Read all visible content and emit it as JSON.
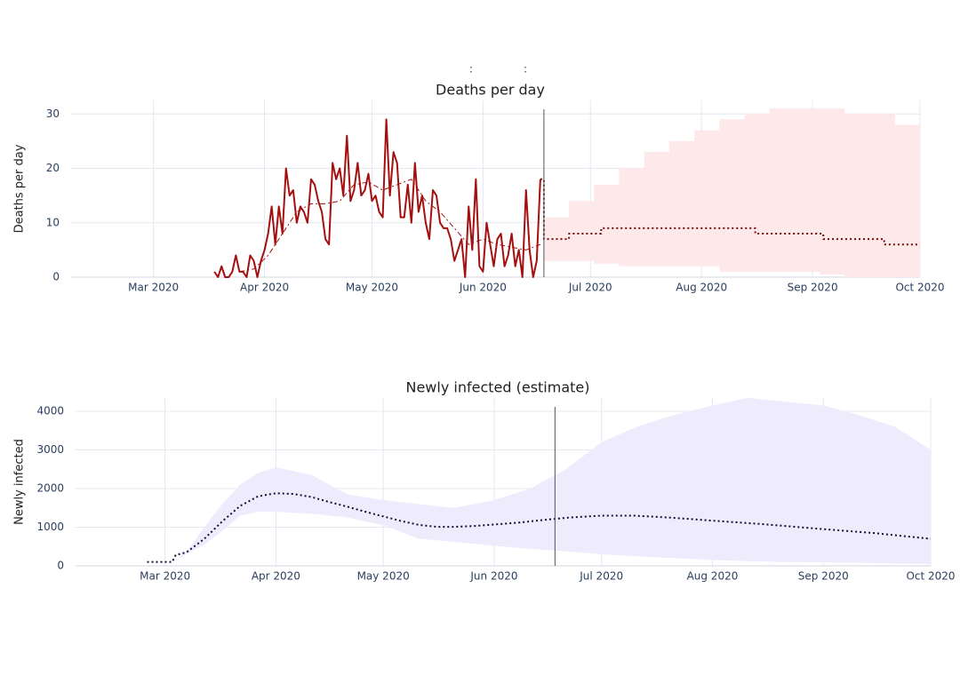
{
  "chart_data": [
    {
      "type": "line",
      "title": "Deaths per day",
      "ylabel": "Deaths per day",
      "annotations": [
        ":",
        ":"
      ],
      "xlim": [
        "2020-02-07",
        "2020-10-01"
      ],
      "xticks": [
        {
          "value": "2020-03-01",
          "label": "Mar 2020"
        },
        {
          "value": "2020-04-01",
          "label": "Apr 2020"
        },
        {
          "value": "2020-05-01",
          "label": "May 2020"
        },
        {
          "value": "2020-06-01",
          "label": "Jun 2020"
        },
        {
          "value": "2020-07-01",
          "label": "Jul 2020"
        },
        {
          "value": "2020-08-01",
          "label": "Aug 2020"
        },
        {
          "value": "2020-09-01",
          "label": "Sep 2020"
        },
        {
          "value": "2020-10-01",
          "label": "Oct 2020"
        }
      ],
      "ylim": [
        0,
        32.5
      ],
      "yticks": [
        0,
        10,
        20,
        30
      ],
      "grid": true,
      "vline": "2020-06-18",
      "band": {
        "color": "#fde8ea",
        "line_shape": "hv",
        "x": [
          "2020-06-18",
          "2020-06-25",
          "2020-07-02",
          "2020-07-09",
          "2020-07-16",
          "2020-07-23",
          "2020-07-30",
          "2020-08-06",
          "2020-08-13",
          "2020-08-20",
          "2020-08-27",
          "2020-09-03",
          "2020-09-10",
          "2020-09-17",
          "2020-09-24",
          "2020-10-01"
        ],
        "upper": [
          11,
          14,
          17,
          20,
          23,
          25,
          27,
          29,
          30,
          31,
          31,
          31,
          30,
          30,
          28,
          26
        ],
        "lower": [
          3,
          3,
          2.5,
          2,
          2,
          2,
          2,
          1,
          1,
          1,
          1,
          0.5,
          0,
          0,
          0,
          0
        ]
      },
      "series": [
        {
          "color": "#a50f0f",
          "style": "solid",
          "width": 2,
          "x": [
            "2020-03-18",
            "2020-03-19",
            "2020-03-20",
            "2020-03-21",
            "2020-03-22",
            "2020-03-23",
            "2020-03-24",
            "2020-03-25",
            "2020-03-26",
            "2020-03-27",
            "2020-03-28",
            "2020-03-29",
            "2020-03-30",
            "2020-03-31",
            "2020-04-01",
            "2020-04-02",
            "2020-04-03",
            "2020-04-04",
            "2020-04-05",
            "2020-04-06",
            "2020-04-07",
            "2020-04-08",
            "2020-04-09",
            "2020-04-10",
            "2020-04-11",
            "2020-04-12",
            "2020-04-13",
            "2020-04-14",
            "2020-04-15",
            "2020-04-16",
            "2020-04-17",
            "2020-04-18",
            "2020-04-19",
            "2020-04-20",
            "2020-04-21",
            "2020-04-22",
            "2020-04-23",
            "2020-04-24",
            "2020-04-25",
            "2020-04-26",
            "2020-04-27",
            "2020-04-28",
            "2020-04-29",
            "2020-04-30",
            "2020-05-01",
            "2020-05-02",
            "2020-05-03",
            "2020-05-04",
            "2020-05-05",
            "2020-05-06",
            "2020-05-07",
            "2020-05-08",
            "2020-05-09",
            "2020-05-10",
            "2020-05-11",
            "2020-05-12",
            "2020-05-13",
            "2020-05-14",
            "2020-05-15",
            "2020-05-16",
            "2020-05-17",
            "2020-05-18",
            "2020-05-19",
            "2020-05-20",
            "2020-05-21",
            "2020-05-22",
            "2020-05-23",
            "2020-05-24",
            "2020-05-25",
            "2020-05-26",
            "2020-05-27",
            "2020-05-28",
            "2020-05-29",
            "2020-05-30",
            "2020-05-31",
            "2020-06-01",
            "2020-06-02",
            "2020-06-03",
            "2020-06-04",
            "2020-06-05",
            "2020-06-06",
            "2020-06-07",
            "2020-06-08",
            "2020-06-09",
            "2020-06-10",
            "2020-06-11",
            "2020-06-12",
            "2020-06-13",
            "2020-06-14",
            "2020-06-15",
            "2020-06-16",
            "2020-06-17"
          ],
          "values": [
            1,
            0,
            2,
            0,
            0,
            1,
            4,
            1,
            1,
            0,
            4,
            3,
            0,
            3,
            5,
            8,
            13,
            6,
            13,
            8,
            20,
            15,
            16,
            10,
            13,
            12,
            10,
            18,
            17,
            14,
            12,
            7,
            6,
            21,
            18,
            20,
            15,
            26,
            14,
            16,
            21,
            15,
            16,
            19,
            14,
            15,
            12,
            11,
            29,
            15,
            23,
            21,
            11,
            11,
            17,
            10,
            21,
            12,
            15,
            10,
            7,
            16,
            15,
            10,
            9,
            9,
            7,
            3,
            5,
            7,
            0,
            13,
            5,
            18,
            2,
            1,
            10,
            6,
            2,
            7,
            8,
            2,
            4,
            8,
            2,
            5,
            0,
            16,
            5,
            0,
            3,
            18
          ]
        },
        {
          "color": "#a50f0f",
          "style": "dashdot",
          "width": 1,
          "x": [
            "2020-03-25",
            "2020-03-29",
            "2020-04-02",
            "2020-04-06",
            "2020-04-10",
            "2020-04-14",
            "2020-04-18",
            "2020-04-22",
            "2020-04-26",
            "2020-04-30",
            "2020-05-04",
            "2020-05-08",
            "2020-05-12",
            "2020-05-16",
            "2020-05-20",
            "2020-05-24",
            "2020-05-28",
            "2020-06-01",
            "2020-06-05",
            "2020-06-09",
            "2020-06-13",
            "2020-06-17"
          ],
          "values": [
            1,
            1.5,
            4,
            8,
            12,
            13.5,
            13.5,
            14,
            17,
            17.5,
            16,
            17,
            18,
            14,
            12,
            9,
            6,
            7,
            6,
            5.5,
            5,
            6
          ]
        },
        {
          "color": "#7a0c0c",
          "style": "dot",
          "width": 2,
          "line_shape": "hv",
          "x": [
            "2020-06-17",
            "2020-06-18",
            "2020-06-25",
            "2020-07-04",
            "2020-08-16",
            "2020-09-04",
            "2020-09-21",
            "2020-10-01"
          ],
          "values": [
            18,
            7,
            8,
            9,
            8,
            7,
            6,
            6
          ]
        }
      ]
    },
    {
      "type": "line",
      "title": "Newly infected (estimate)",
      "ylabel": "Newly infected",
      "xlim": [
        "2020-02-05",
        "2020-10-01"
      ],
      "xticks": [
        {
          "value": "2020-03-01",
          "label": "Mar 2020"
        },
        {
          "value": "2020-04-01",
          "label": "Apr 2020"
        },
        {
          "value": "2020-05-01",
          "label": "May 2020"
        },
        {
          "value": "2020-06-01",
          "label": "Jun 2020"
        },
        {
          "value": "2020-07-01",
          "label": "Jul 2020"
        },
        {
          "value": "2020-08-01",
          "label": "Aug 2020"
        },
        {
          "value": "2020-09-01",
          "label": "Sep 2020"
        },
        {
          "value": "2020-10-01",
          "label": "Oct 2020"
        }
      ],
      "ylim": [
        0,
        4345
      ],
      "yticks": [
        0,
        1000,
        2000,
        3000,
        4000
      ],
      "grid": true,
      "vline": "2020-06-18",
      "band": {
        "color": "#eeebfc",
        "line_shape": "linear",
        "x": [
          "2020-03-03",
          "2020-03-07",
          "2020-03-12",
          "2020-03-17",
          "2020-03-22",
          "2020-03-27",
          "2020-04-01",
          "2020-04-11",
          "2020-04-21",
          "2020-05-01",
          "2020-05-11",
          "2020-05-21",
          "2020-06-01",
          "2020-06-11",
          "2020-06-21",
          "2020-07-01",
          "2020-07-11",
          "2020-07-21",
          "2020-08-01",
          "2020-08-11",
          "2020-08-21",
          "2020-09-01",
          "2020-09-11",
          "2020-09-21",
          "2020-10-01"
        ],
        "upper": [
          100,
          350,
          1000,
          1600,
          2100,
          2400,
          2550,
          2350,
          1850,
          1700,
          1600,
          1500,
          1700,
          2000,
          2500,
          3200,
          3600,
          3900,
          4150,
          4350,
          4250,
          4150,
          3900,
          3600,
          3000
        ],
        "lower": [
          100,
          300,
          550,
          900,
          1300,
          1400,
          1400,
          1350,
          1250,
          1050,
          700,
          620,
          520,
          440,
          380,
          300,
          250,
          200,
          150,
          120,
          100,
          90,
          80,
          60,
          50
        ]
      },
      "series": [
        {
          "color": "#1a0a3a",
          "style": "dot",
          "width": 2,
          "x": [
            "2020-02-25",
            "2020-03-03",
            "2020-03-04",
            "2020-03-07",
            "2020-03-12",
            "2020-03-17",
            "2020-03-22",
            "2020-03-27",
            "2020-04-01",
            "2020-04-06",
            "2020-04-11",
            "2020-04-16",
            "2020-04-21",
            "2020-04-26",
            "2020-05-01",
            "2020-05-06",
            "2020-05-11",
            "2020-05-16",
            "2020-05-21",
            "2020-05-26",
            "2020-06-01",
            "2020-06-08",
            "2020-06-15",
            "2020-06-22",
            "2020-07-01",
            "2020-07-10",
            "2020-07-20",
            "2020-08-01",
            "2020-08-15",
            "2020-09-01",
            "2020-09-15",
            "2020-10-01"
          ],
          "values": [
            100,
            100,
            280,
            350,
            700,
            1150,
            1550,
            1800,
            1880,
            1860,
            1780,
            1650,
            1530,
            1400,
            1280,
            1160,
            1060,
            1010,
            1010,
            1030,
            1070,
            1120,
            1190,
            1250,
            1300,
            1300,
            1250,
            1170,
            1080,
            950,
            850,
            700
          ]
        }
      ]
    }
  ]
}
